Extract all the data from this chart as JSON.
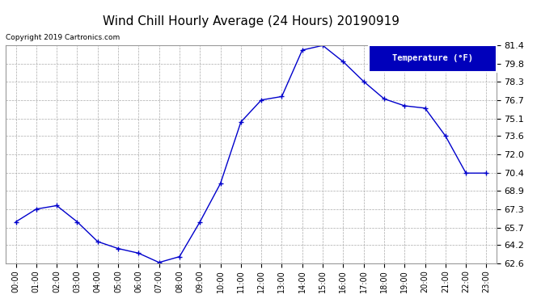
{
  "title": "Wind Chill Hourly Average (24 Hours) 20190919",
  "copyright_text": "Copyright 2019 Cartronics.com",
  "legend_label": "Temperature (°F)",
  "hours": [
    0,
    1,
    2,
    3,
    4,
    5,
    6,
    7,
    8,
    9,
    10,
    11,
    12,
    13,
    14,
    15,
    16,
    17,
    18,
    19,
    20,
    21,
    22,
    23
  ],
  "hour_labels": [
    "00:00",
    "01:00",
    "02:00",
    "03:00",
    "04:00",
    "05:00",
    "06:00",
    "07:00",
    "08:00",
    "09:00",
    "10:00",
    "11:00",
    "12:00",
    "13:00",
    "14:00",
    "15:00",
    "16:00",
    "17:00",
    "18:00",
    "19:00",
    "20:00",
    "21:00",
    "22:00",
    "23:00"
  ],
  "values": [
    66.2,
    67.3,
    67.6,
    66.2,
    64.5,
    63.9,
    63.5,
    62.7,
    63.2,
    66.2,
    69.5,
    74.8,
    76.7,
    77.0,
    81.0,
    81.4,
    80.0,
    78.3,
    76.8,
    76.2,
    76.0,
    73.6,
    70.4,
    70.4
  ],
  "ylim": [
    62.6,
    81.4
  ],
  "yticks": [
    62.6,
    64.2,
    65.7,
    67.3,
    68.9,
    70.4,
    72.0,
    73.6,
    75.1,
    76.7,
    78.3,
    79.8,
    81.4
  ],
  "line_color": "#0000cc",
  "marker": "+",
  "background_color": "#ffffff",
  "grid_color": "#aaaaaa",
  "title_fontsize": 11,
  "legend_bg": "#0000bb",
  "legend_text_color": "#ffffff",
  "fig_width": 6.9,
  "fig_height": 3.75,
  "dpi": 100
}
